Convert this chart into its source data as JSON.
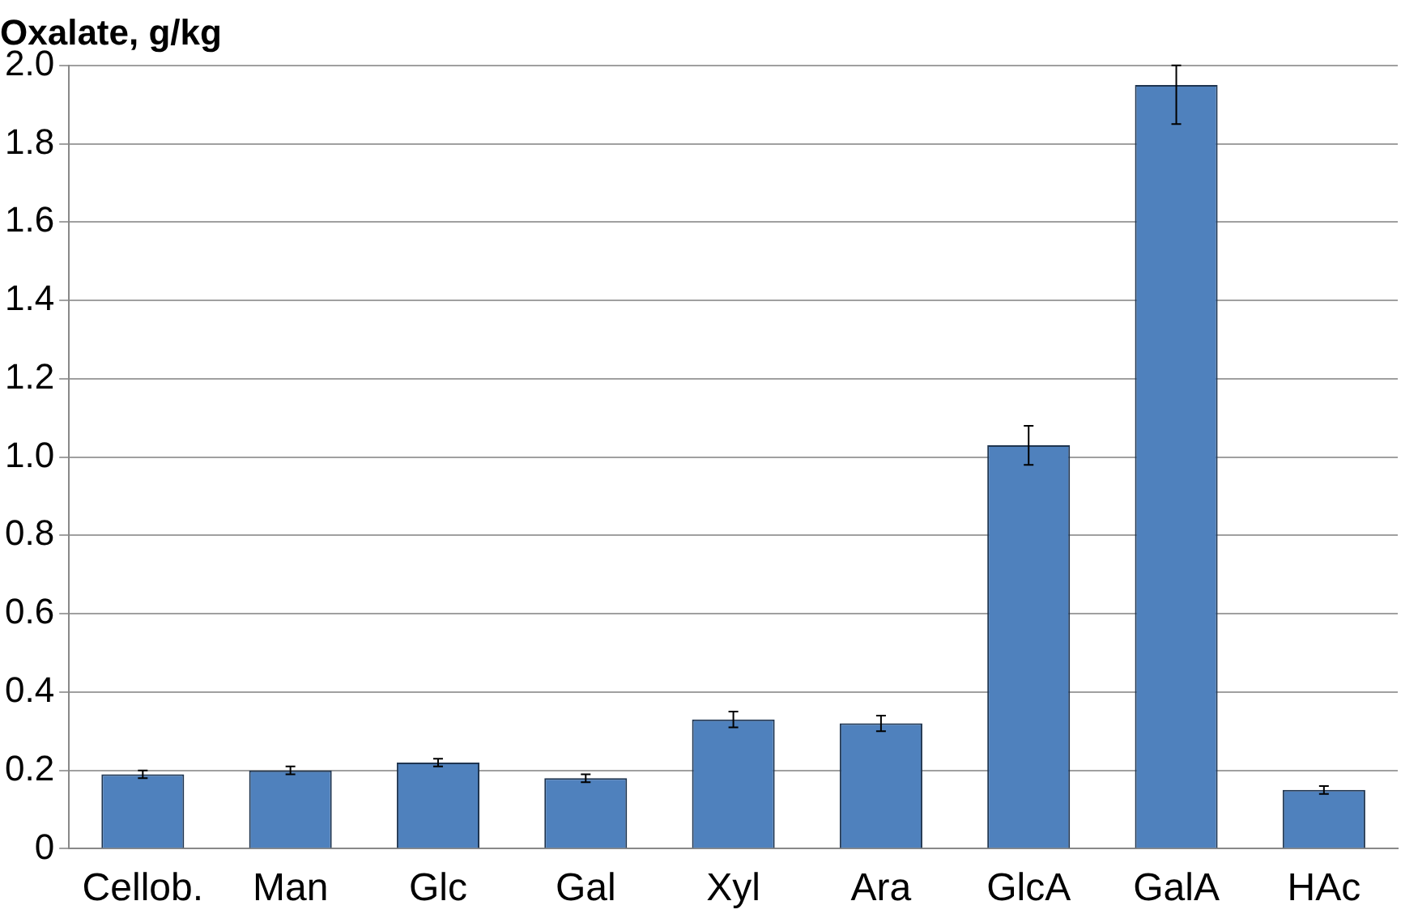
{
  "chart_data": {
    "type": "bar",
    "ylabel": "Oxalate, g/kg",
    "categories": [
      "Cellob.",
      "Man",
      "Glc",
      "Gal",
      "Xyl",
      "Ara",
      "GlcA",
      "GalA",
      "HAc"
    ],
    "values": [
      0.19,
      0.2,
      0.22,
      0.18,
      0.33,
      0.32,
      1.03,
      1.95,
      0.15
    ],
    "errors": [
      0.01,
      0.01,
      0.01,
      0.01,
      0.02,
      0.02,
      0.05,
      [
        1.85,
        2.0
      ],
      0.01
    ],
    "color": "#4f81bd",
    "ylim": [
      0,
      2.0
    ],
    "yticks": [
      {
        "value": 0,
        "label": "0"
      },
      {
        "value": 0.2,
        "label": "0.2"
      },
      {
        "value": 0.4,
        "label": "0.4"
      },
      {
        "value": 0.6,
        "label": "0.6"
      },
      {
        "value": 0.8,
        "label": "0.8"
      },
      {
        "value": 1.0,
        "label": "1.0"
      },
      {
        "value": 1.2,
        "label": "1.2"
      },
      {
        "value": 1.4,
        "label": "1.4"
      },
      {
        "value": 1.6,
        "label": "1.6"
      },
      {
        "value": 1.8,
        "label": "1.8"
      },
      {
        "value": 2.0,
        "label": "2.0"
      }
    ],
    "grid": "y",
    "legend": false
  }
}
